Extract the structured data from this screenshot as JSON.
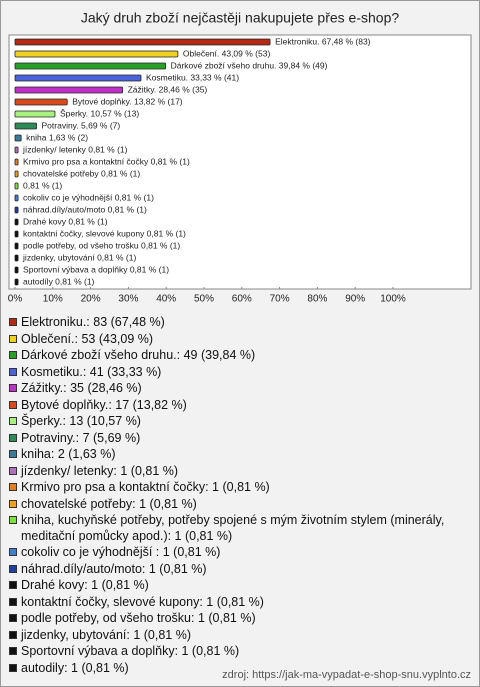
{
  "chart_data": {
    "type": "bar",
    "orientation": "horizontal",
    "title": "Jaký druh zboží nejčastěji nakupujete přes e-shop?",
    "source": "zdroj: https://jak-ma-vypadat-e-shop-snu.vyplnto.cz",
    "categories": [
      "Elektroniku.: 83 (67,48 %)",
      "Oblečení.: 53 (43,09 %)",
      "Dárkové zboží všeho druhu.: 49 (39,84 %)",
      "Kosmetiku.: 41 (33,33 %)",
      "Zážitky.: 35 (28,46 %)",
      "Bytové doplňky.: 17 (13,82 %)",
      "Šperky.: 13 (10,57 %)",
      "Potraviny.: 7 (5,69 %)",
      "kniha: 2 (1,63 %)",
      "jízdenky/ letenky: 1 (0,81 %)",
      "Krmivo pro psa a kontaktní čočky: 1 (0,81 %)",
      "chovatelské potřeby: 1 (0,81 %)",
      "kniha, kuchyňské potřeby, potřeby spojené s mým životním stylem (minerály, meditační pomůcky apod.): 1 (0,81 %)",
      "cokoliv co je výhodnější : 1 (0,81 %)",
      "náhrad.díly/auto/moto: 1 (0,81 %)",
      "Drahé kovy: 1 (0,81 %)",
      "kontaktní čočky, slevové kupony: 1 (0,81 %)",
      "podle potřeby, od všeho trošku: 1 (0,81 %)",
      "jizdenky, ubytování: 1 (0,81 %)",
      "Sportovní výbava a doplňky: 1 (0,81 %)",
      "autodily: 1 (0,81 %)"
    ],
    "values": [
      67.48,
      43.09,
      39.84,
      33.33,
      28.46,
      13.82,
      10.57,
      5.69,
      1.63,
      0.81,
      0.81,
      0.81,
      0.81,
      0.81,
      0.81,
      0.81,
      0.81,
      0.81,
      0.81,
      0.81,
      0.81
    ],
    "value_labels": [
      "Elektroniku. 67,48 % (83)",
      "Oblečení. 43,09 % (53)",
      "Dárkové zboží všeho druhu. 39,84 % (49)",
      "Kosmetiku. 33,33 % (41)",
      "Zážitky. 28,46 % (35)",
      "Bytové doplňky. 13,82 % (17)",
      "Šperky. 10,57 % (13)",
      "Potraviny. 5,69 % (7)",
      "kniha 1,63 % (2)",
      "jízdenky/ letenky 0,81 % (1)",
      "Krmivo pro psa a kontaktní čočky 0,81 % (1)",
      "chovatelské potřeby 0,81 % (1)",
      "0,81 % (1)",
      "cokoliv co je výhodnější  0,81 % (1)",
      "náhrad.díly/auto/moto 0,81 % (1)",
      "Drahé kovy 0,81 % (1)",
      "kontaktní čočky, slevové kupony 0,81 % (1)",
      "podle potřeby, od všeho trošku 0,81 % (1)",
      "jizdenky, ubytování 0,81 % (1)",
      "Sportovní výbava a doplňky 0,81 % (1)",
      "autodíly 0,81 % (1)"
    ],
    "colors": [
      "#b52a14",
      "#f0d020",
      "#28a028",
      "#4a63d8",
      "#c030c8",
      "#d84a1c",
      "#a8f080",
      "#2e8b57",
      "#3a7a9a",
      "#b070c0",
      "#e08020",
      "#f0a020",
      "#80e040",
      "#4080d0",
      "#2040a0",
      "#111111",
      "#111111",
      "#111111",
      "#111111",
      "#111111",
      "#111111"
    ],
    "xlim": [
      0,
      100
    ],
    "xticks": [
      {
        "value": 0,
        "label": "0%"
      },
      {
        "value": 10,
        "label": "10%"
      },
      {
        "value": 20,
        "label": "20%"
      },
      {
        "value": 30,
        "label": "30%"
      },
      {
        "value": 40,
        "label": "40%"
      },
      {
        "value": 50,
        "label": "50%"
      },
      {
        "value": 60,
        "label": "60%"
      },
      {
        "value": 70,
        "label": "70%"
      },
      {
        "value": 80,
        "label": "80%"
      },
      {
        "value": 90,
        "label": "90%"
      },
      {
        "value": 100,
        "label": "100%"
      }
    ]
  }
}
